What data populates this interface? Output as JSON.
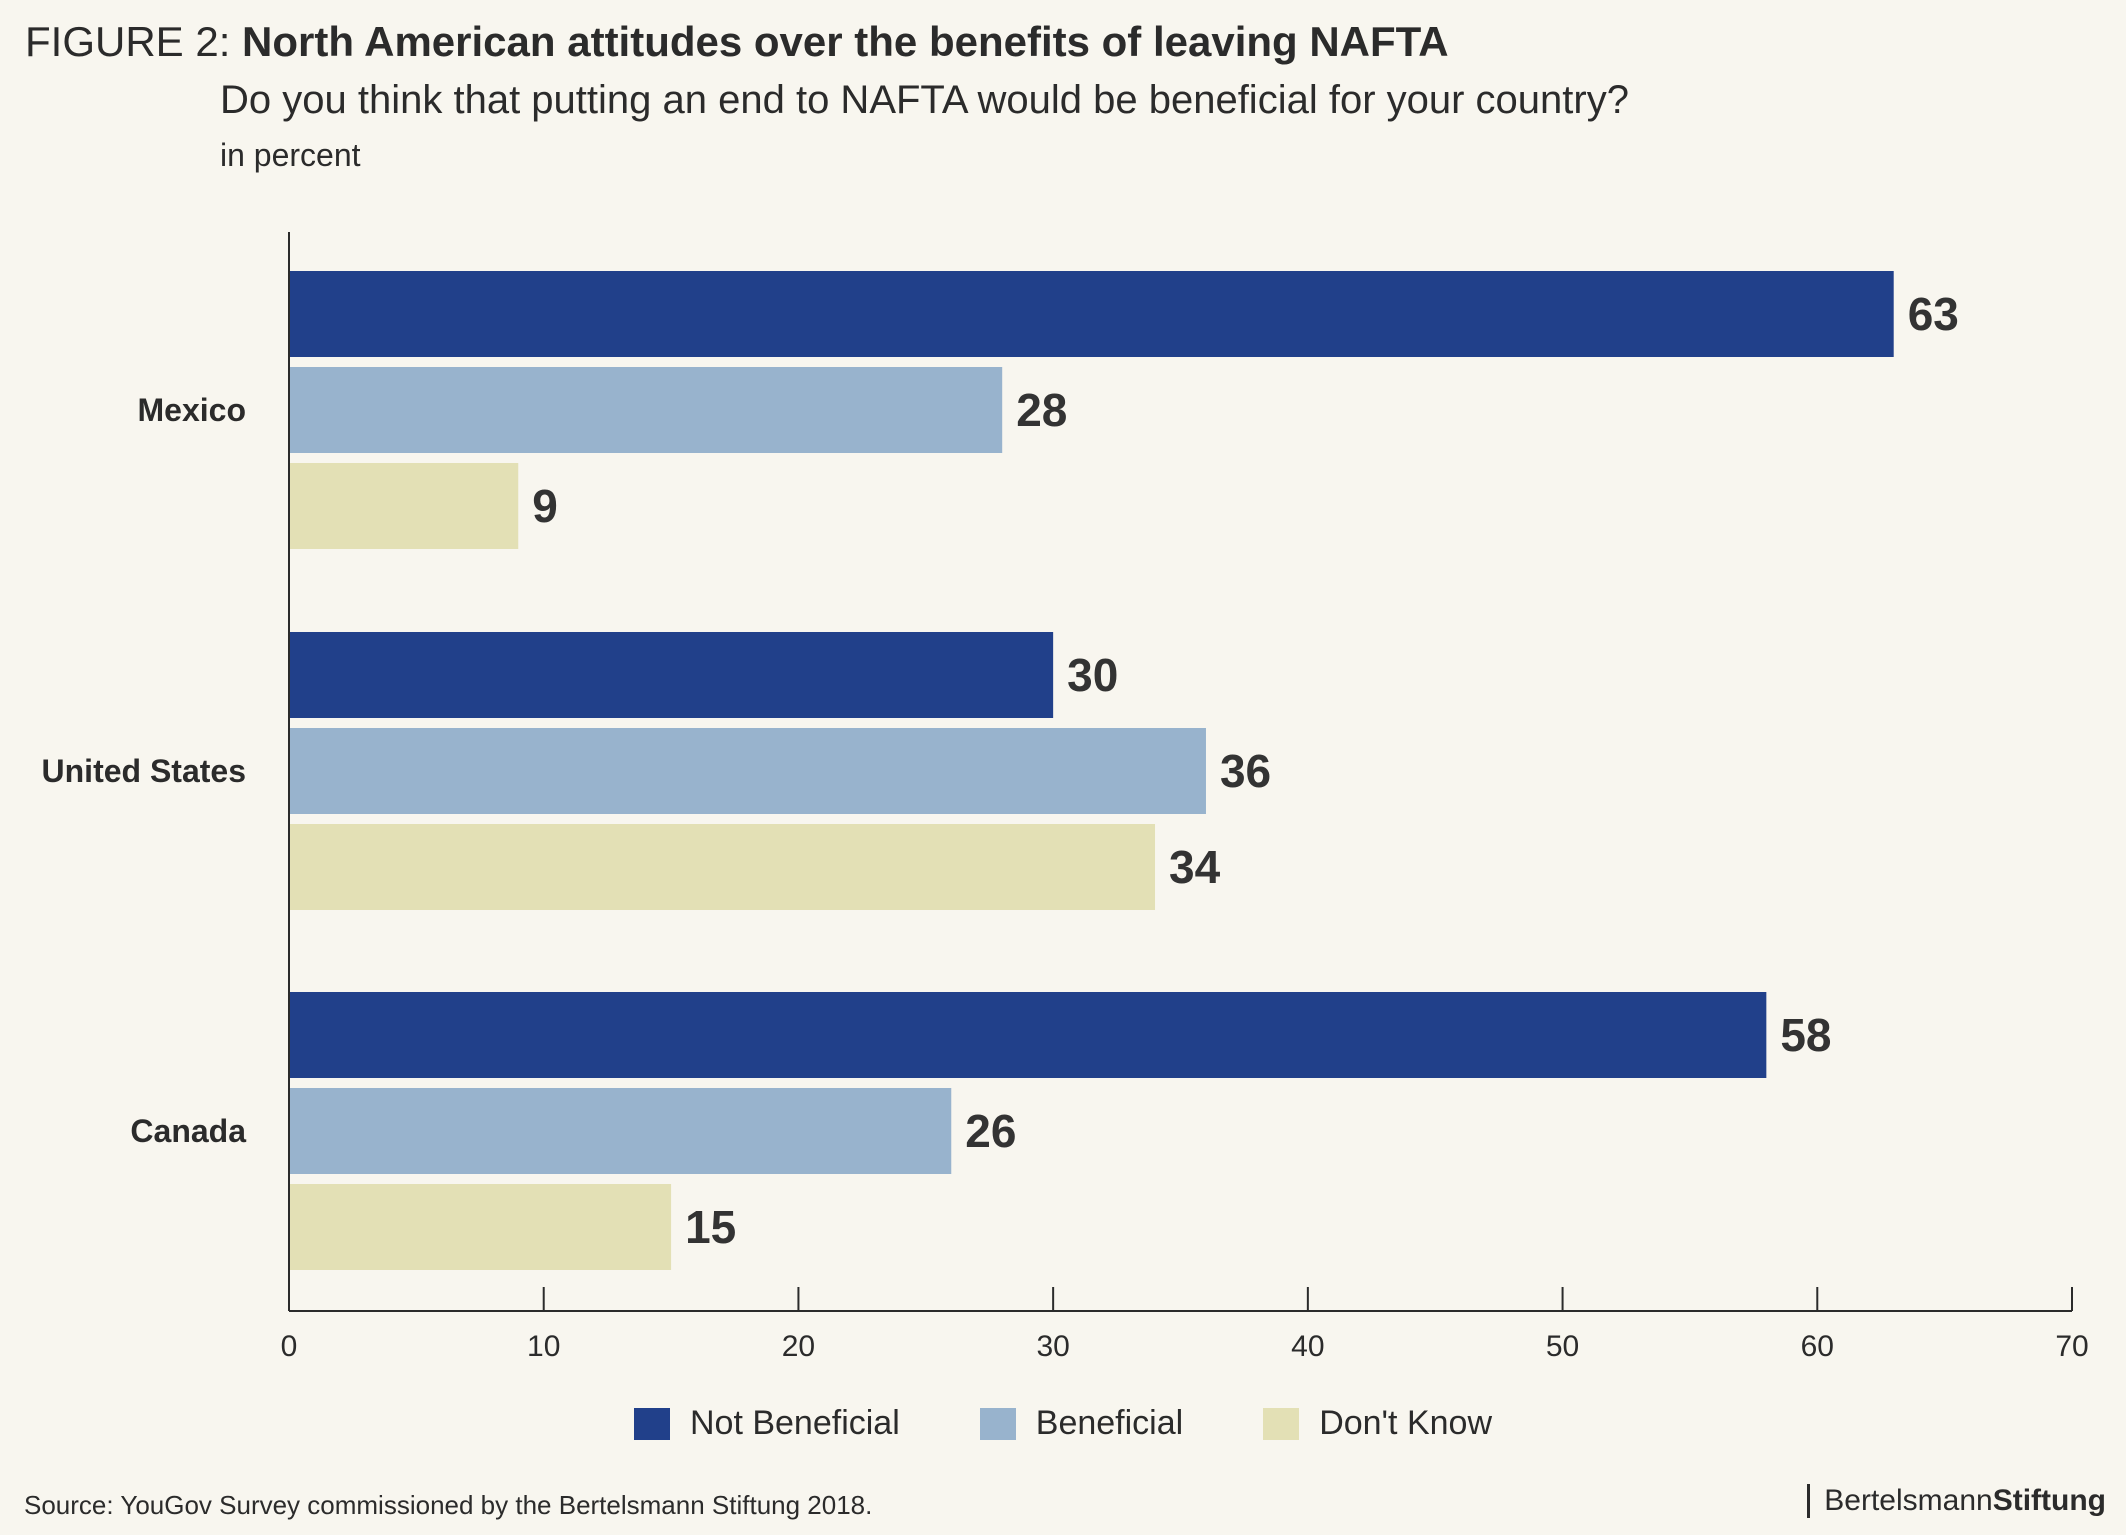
{
  "header": {
    "figure_label": "FIGURE 2:",
    "title": "North American attitudes over the benefits of leaving NAFTA",
    "subtitle": "Do you think that putting an end to NAFTA would be beneficial for your country?",
    "unit": "in percent"
  },
  "footer": {
    "source": "Source: YouGov Survey commissioned by the Bertelsmann Stiftung 2018.",
    "brand_regular": "Bertelsmann",
    "brand_bold": "Stiftung"
  },
  "colors": {
    "not_beneficial": "#21408a",
    "beneficial": "#98b3cd",
    "dont_know": "#e3e0b5",
    "axis": "#2b2b2b",
    "background": "#f8f6ef"
  },
  "chart_data": {
    "type": "bar",
    "orientation": "horizontal",
    "categories": [
      "Mexico",
      "United States",
      "Canada"
    ],
    "series": [
      {
        "name": "Not Beneficial",
        "values": [
          63,
          30,
          58
        ]
      },
      {
        "name": "Beneficial",
        "values": [
          28,
          36,
          26
        ]
      },
      {
        "name": "Don't Know",
        "values": [
          9,
          34,
          15
        ]
      }
    ],
    "xlim": [
      0,
      70
    ],
    "xticks": [
      0,
      10,
      20,
      30,
      40,
      50,
      60,
      70
    ],
    "grid": false,
    "legend_position": "bottom",
    "data_labels": true
  }
}
